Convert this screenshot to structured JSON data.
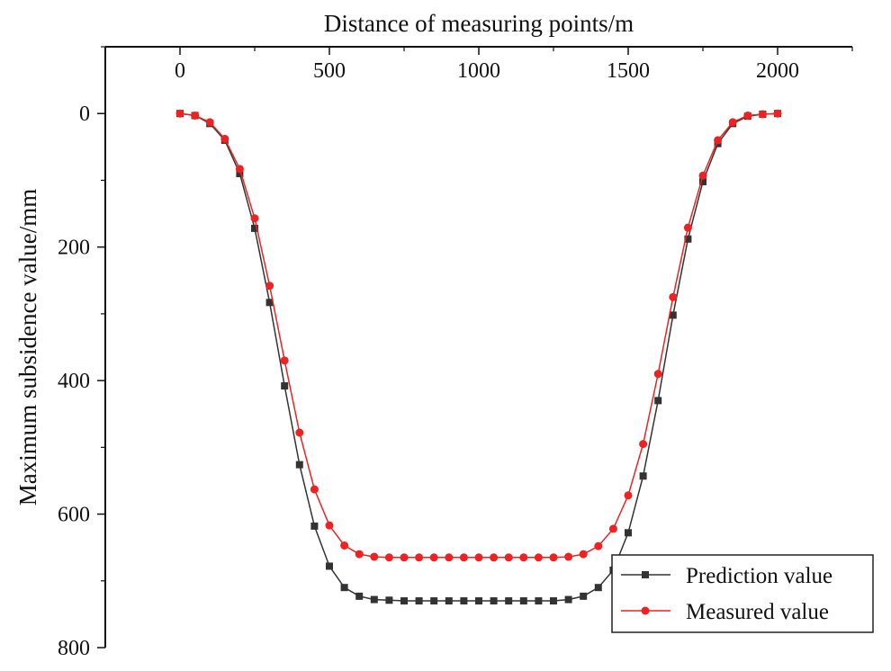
{
  "chart_data": {
    "type": "line",
    "title": "",
    "xlabel": "Distance of measuring points/m",
    "ylabel": "Maximum subsidence value/mm",
    "xlim": [
      -250,
      2250
    ],
    "ylim": [
      -100,
      800
    ],
    "y_inverted": true,
    "x_axis_position": "top",
    "x_ticks": [
      "0",
      "500",
      "1000",
      "1500",
      "2000"
    ],
    "y_ticks": [
      "0",
      "200",
      "400",
      "600",
      "800"
    ],
    "grid": false,
    "legend_position": "bottom-right",
    "x": [
      0,
      50,
      100,
      150,
      200,
      250,
      300,
      350,
      400,
      450,
      500,
      550,
      600,
      650,
      700,
      750,
      800,
      850,
      900,
      950,
      1000,
      1050,
      1100,
      1150,
      1200,
      1250,
      1300,
      1350,
      1400,
      1450,
      1500,
      1550,
      1600,
      1650,
      1700,
      1750,
      1800,
      1850,
      1900,
      1950,
      2000
    ],
    "series": [
      {
        "name": "Prediction value",
        "color": "#333333",
        "marker": "square",
        "values": [
          0,
          3,
          15,
          40,
          90,
          172,
          283,
          408,
          526,
          618,
          678,
          710,
          723,
          728,
          729,
          730,
          730,
          730,
          730,
          730,
          730,
          730,
          730,
          730,
          730,
          730,
          728,
          723,
          710,
          684,
          628,
          543,
          430,
          302,
          188,
          102,
          45,
          15,
          4,
          1,
          0
        ]
      },
      {
        "name": "Measured value",
        "color": "#ee2222",
        "marker": "circle",
        "values": [
          0,
          3,
          13,
          38,
          83,
          157,
          258,
          370,
          478,
          563,
          617,
          647,
          660,
          664,
          665,
          665,
          665,
          665,
          665,
          665,
          665,
          665,
          665,
          665,
          665,
          665,
          664,
          660,
          648,
          622,
          572,
          495,
          390,
          275,
          171,
          93,
          40,
          13,
          3,
          1,
          0
        ]
      }
    ]
  }
}
